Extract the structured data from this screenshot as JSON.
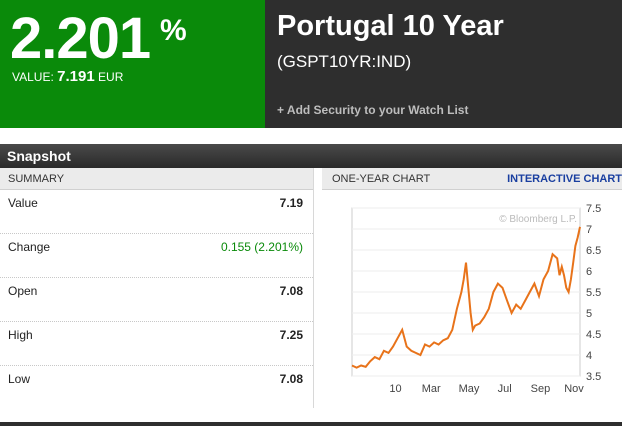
{
  "quote": {
    "yield": "2.201",
    "pct_sign": "%",
    "value_label": "VALUE:",
    "value": "7.191",
    "currency": "EUR"
  },
  "security": {
    "title": "Portugal 10 Year",
    "ticker": "(GSPT10YR:IND)",
    "watch_link": "+ Add Security to your Watch List"
  },
  "snapshot": {
    "title": "Snapshot",
    "summary_header": "SUMMARY",
    "rows": [
      {
        "label": "Value",
        "value": "7.19"
      },
      {
        "label": "Change",
        "value": "0.155 (2.201%)"
      },
      {
        "label": "Open",
        "value": "7.08"
      },
      {
        "label": "High",
        "value": "7.25"
      },
      {
        "label": "Low",
        "value": "7.08"
      }
    ],
    "chart_header": "ONE-YEAR CHART",
    "interactive_link": "INTERACTIVE CHART",
    "watermark": "© Bloomberg L.P.",
    "line_color": "#e8731a"
  },
  "chart_data": {
    "type": "line",
    "x_ticks": [
      "10",
      "Mar",
      "May",
      "Jul",
      "Sep",
      "Nov"
    ],
    "y_ticks": [
      "3.5",
      "4",
      "4.5",
      "5",
      "5.5",
      "6",
      "6.5",
      "7",
      "7.5"
    ],
    "ylim": [
      3.5,
      7.5
    ],
    "xlim": [
      0,
      100
    ],
    "series": [
      {
        "x": [
          0,
          2,
          4,
          6,
          8,
          10,
          12,
          14,
          16,
          18,
          20,
          22,
          24,
          26,
          28,
          30,
          32,
          34,
          36,
          38,
          40,
          42,
          44,
          46,
          48,
          49,
          50,
          51,
          52,
          53,
          54,
          56,
          58,
          60,
          62,
          64,
          66,
          68,
          70,
          72,
          74,
          76,
          78,
          80,
          82,
          84,
          86,
          88,
          90,
          91,
          92,
          93,
          94,
          95,
          96,
          97,
          98,
          99,
          100
        ],
        "y": [
          3.75,
          3.7,
          3.75,
          3.72,
          3.85,
          3.95,
          3.9,
          4.1,
          4.05,
          4.2,
          4.4,
          4.6,
          4.2,
          4.1,
          4.05,
          4.0,
          4.25,
          4.2,
          4.3,
          4.25,
          4.35,
          4.4,
          4.6,
          5.1,
          5.5,
          5.8,
          6.2,
          5.6,
          5.0,
          4.6,
          4.7,
          4.75,
          4.9,
          5.1,
          5.5,
          5.7,
          5.6,
          5.3,
          5.0,
          5.2,
          5.1,
          5.3,
          5.5,
          5.7,
          5.4,
          5.8,
          6.0,
          6.4,
          6.3,
          5.9,
          6.1,
          5.9,
          5.6,
          5.5,
          5.8,
          6.2,
          6.6,
          6.8,
          7.05
        ]
      }
    ]
  }
}
